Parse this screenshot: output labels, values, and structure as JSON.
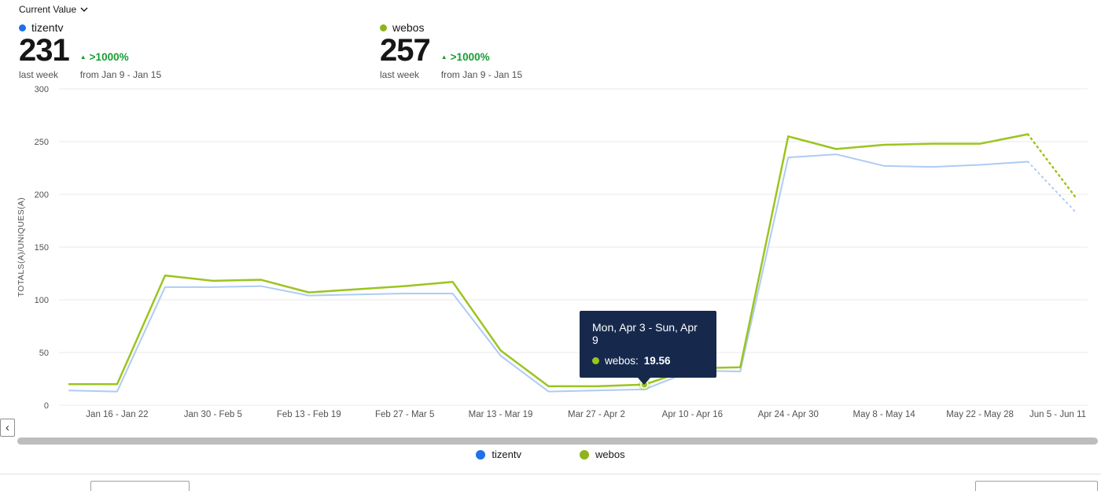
{
  "header": {
    "current_value_label": "Current Value"
  },
  "colors": {
    "positive_change": "#169e33",
    "tooltip_bg": "#16294d",
    "tizentv_dot": "#2170e8",
    "webos_dot": "#8fb31d",
    "tizentv_line": "#aecbf5",
    "webos_line": "#9cc41e"
  },
  "metrics": [
    {
      "name": "tizentv",
      "dot_color": "#2170e8",
      "value": "231",
      "period": "last week",
      "change": ">1000%",
      "change_from": "from Jan 9 - Jan 15"
    },
    {
      "name": "webos",
      "dot_color": "#8fb31d",
      "value": "257",
      "period": "last week",
      "change": ">1000%",
      "change_from": "from Jan 9 - Jan 15"
    }
  ],
  "tooltip": {
    "title": "Mon, Apr 3 - Sun, Apr 9",
    "series_label": "webos:",
    "value": "19.56"
  },
  "legend": [
    {
      "label": "tizentv"
    },
    {
      "label": "webos"
    }
  ],
  "scrollbar": {
    "left_arrow": "‹"
  },
  "chart_data": {
    "type": "line",
    "ylabel": "TOTALS(A)/UNIQUES(A)",
    "ylim": [
      0,
      300
    ],
    "yticks": [
      0,
      50,
      100,
      150,
      200,
      250,
      300
    ],
    "x_tick_labels": [
      "Jan 16 - Jan 22",
      "Jan 30 - Feb 5",
      "Feb 13 - Feb 19",
      "Feb 27 - Mar 5",
      "Mar 13 - Mar 19",
      "Mar 27 - Apr 2",
      "Apr 10 - Apr 16",
      "Apr 24 - Apr 30",
      "May 8 - May 14",
      "May 22 - May 28",
      "Jun 5 - Jun 11"
    ],
    "x_tick_indices": [
      1,
      3,
      5,
      7,
      9,
      11,
      13,
      15,
      17,
      19,
      21
    ],
    "series": [
      {
        "name": "tizentv",
        "color": "#aecbf5",
        "solid_until": 20,
        "values": [
          14,
          13,
          112,
          112,
          113,
          104,
          105,
          106,
          106,
          47,
          13,
          14,
          15,
          33,
          32,
          235,
          238,
          227,
          226,
          228,
          231,
          183
        ]
      },
      {
        "name": "webos",
        "color": "#9cc41e",
        "solid_until": 20,
        "values": [
          20,
          20,
          123,
          118,
          119,
          107,
          110,
          113,
          117,
          52,
          18,
          18,
          19.56,
          35,
          36,
          255,
          243,
          247,
          248,
          248,
          257,
          197
        ]
      }
    ],
    "highlight": {
      "series": "webos",
      "index": 12,
      "value": 19.56
    },
    "grid": true,
    "legend_position": "bottom"
  }
}
